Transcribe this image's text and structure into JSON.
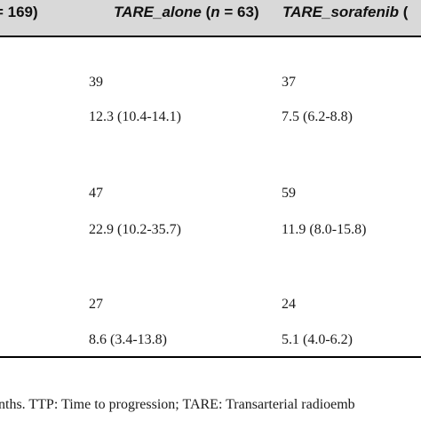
{
  "header": {
    "col1_text": "= 169)",
    "col2_name": "TARE_alone",
    "col2_open": " (",
    "col2_n": "n",
    "col2_rest": " = 63)",
    "col3_name": "TARE_sorafenib",
    "col3_rest": " ("
  },
  "rows": [
    {
      "tare_alone": "39",
      "tare_sorafenib": "37"
    },
    {
      "tare_alone": "12.3 (10.4-14.1)",
      "tare_sorafenib": "7.5 (6.2-8.8)"
    },
    {
      "tare_alone": "47",
      "tare_sorafenib": "59"
    },
    {
      "tare_alone": "22.9 (10.2-35.7)",
      "tare_sorafenib": "11.9 (8.0-15.8)"
    },
    {
      "tare_alone": "27",
      "tare_sorafenib": "24"
    },
    {
      "tare_alone": "8.6 (3.4-13.8)",
      "tare_sorafenib": "5.1 (4.0-6.2)"
    }
  ],
  "footnote": "nths. TTP: Time to progression; TARE: Transarterial radioemb"
}
